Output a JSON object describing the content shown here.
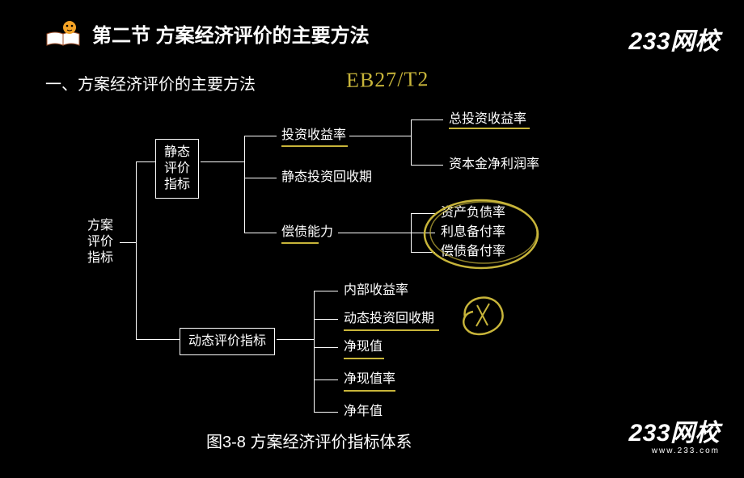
{
  "header": {
    "title": "第二节   方案经济评价的主要方法",
    "subtitle": "一、方案经济评价的主要方法"
  },
  "logo": {
    "text": "233网校",
    "url": "www.233.com"
  },
  "caption": "图3-8   方案经济评价指标体系",
  "tree": {
    "root": "方案\n评价\n指标",
    "static_box": "静态\n评价\n指标",
    "dynamic_box": "动态评价指标",
    "static_children": {
      "a": "投资收益率",
      "a_children": {
        "a1": "总投资收益率",
        "a2": "资本金净利润率"
      },
      "b": "静态投资回收期",
      "c": "偿债能力",
      "c_children": {
        "c1": "资产负债率",
        "c2": "利息备付率",
        "c3": "偿债备付率"
      }
    },
    "dynamic_children": {
      "d1": "内部收益率",
      "d2": "动态投资回收期",
      "d3": "净现值",
      "d4": "净现值率",
      "d5": "净年值"
    }
  },
  "annotations": {
    "handwriting": "EB27/T2"
  },
  "style": {
    "bg": "#000000",
    "text": "#ffffff",
    "annot_color": "#c8b53a",
    "title_fontsize": 24,
    "body_fontsize": 16,
    "subtitle_fontsize": 20
  }
}
